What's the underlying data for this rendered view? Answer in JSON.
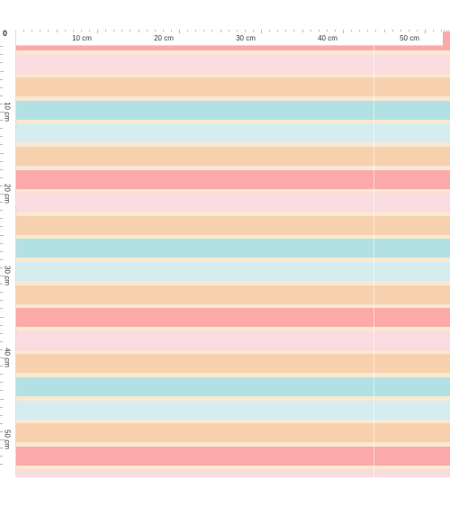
{
  "ruler": {
    "origin_label": "0",
    "unit": "cm",
    "top_labels": [
      "10 cm",
      "20 cm",
      "30 cm",
      "40 cm",
      "50 cm"
    ],
    "side_labels": [
      "10 cm",
      "20 cm",
      "30 cm",
      "40 cm",
      "50 cm"
    ]
  },
  "pattern": {
    "colors": {
      "cream": "#f9e8d2",
      "coral": "#fca9a9",
      "pink": "#f9dbe0",
      "peach": "#f7d1ad",
      "teal": "#b2e1e5",
      "aqua": "#d6edef"
    },
    "stripe_sequence": [
      "coral",
      "pink",
      "peach",
      "teal",
      "aqua",
      "peach"
    ]
  }
}
